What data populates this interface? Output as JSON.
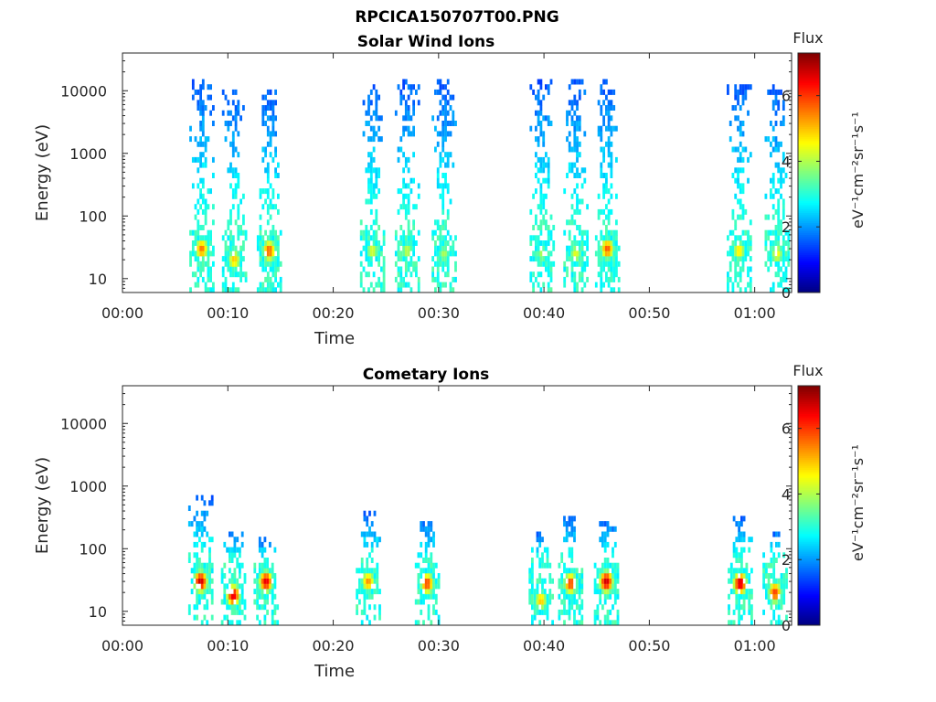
{
  "figure_title": "RPCICA150707T00.PNG",
  "colormap": [
    "#00007f",
    "#0000ff",
    "#007fff",
    "#00ffff",
    "#7fff7f",
    "#ffff00",
    "#ff7f00",
    "#ff0000",
    "#7f0000"
  ],
  "chart_data": [
    {
      "type": "heatmap",
      "title": "Solar Wind Ions",
      "xlabel": "Time",
      "ylabel": "Energy (eV)",
      "x_scale": "time",
      "x_range_minutes": [
        0,
        63.5
      ],
      "x_ticks": [
        "00:00",
        "00:10",
        "00:20",
        "00:30",
        "00:40",
        "00:50",
        "01:00"
      ],
      "y_scale": "log",
      "ylim": [
        6,
        40000
      ],
      "y_ticks": [
        "10",
        "100",
        "1000",
        "10000"
      ],
      "colorbar": {
        "label": "Flux",
        "units": "eV⁻¹cm⁻²sr⁻¹s⁻¹",
        "range": [
          0,
          7.3
        ],
        "ticks": [
          "0",
          "2",
          "4",
          "6"
        ]
      },
      "ion_bursts": [
        {
          "t": 7.4,
          "low_peak_eV": 30,
          "low_level": 5.6,
          "high_extent_eV": 15000
        },
        {
          "t": 10.5,
          "low_peak_eV": 20,
          "low_level": 5.0,
          "high_extent_eV": 11000
        },
        {
          "t": 13.8,
          "low_peak_eV": 28,
          "low_level": 5.8,
          "high_extent_eV": 11000
        },
        {
          "t": 23.6,
          "low_peak_eV": 28,
          "low_level": 4.4,
          "high_extent_eV": 14000
        },
        {
          "t": 26.9,
          "low_peak_eV": 28,
          "low_level": 4.2,
          "high_extent_eV": 14000
        },
        {
          "t": 30.4,
          "low_peak_eV": 25,
          "low_level": 4.0,
          "high_extent_eV": 14000
        },
        {
          "t": 39.7,
          "low_peak_eV": 25,
          "low_level": 4.0,
          "high_extent_eV": 14000
        },
        {
          "t": 42.9,
          "low_peak_eV": 25,
          "low_level": 4.4,
          "high_extent_eV": 15000
        },
        {
          "t": 45.9,
          "low_peak_eV": 30,
          "low_level": 5.8,
          "high_extent_eV": 15000
        },
        {
          "t": 58.4,
          "low_peak_eV": 28,
          "low_level": 4.8,
          "high_extent_eV": 12000
        },
        {
          "t": 62.0,
          "low_peak_eV": 25,
          "low_level": 4.6,
          "high_extent_eV": 12000
        }
      ]
    },
    {
      "type": "heatmap",
      "title": "Cometary Ions",
      "xlabel": "Time",
      "ylabel": "Energy (eV)",
      "x_scale": "time",
      "x_range_minutes": [
        0,
        63.5
      ],
      "x_ticks": [
        "00:00",
        "00:10",
        "00:20",
        "00:30",
        "00:40",
        "00:50",
        "01:00"
      ],
      "y_scale": "log",
      "ylim": [
        6,
        40000
      ],
      "y_ticks": [
        "10",
        "100",
        "1000",
        "10000"
      ],
      "colorbar": {
        "label": "Flux",
        "units": "eV⁻¹cm⁻²sr⁻¹s⁻¹",
        "range": [
          0,
          7.3
        ],
        "ticks": [
          "0",
          "2",
          "4",
          "6"
        ]
      },
      "ion_bursts": [
        {
          "t": 7.3,
          "low_peak_eV": 30,
          "low_level": 6.8,
          "high_extent_eV": 700
        },
        {
          "t": 10.4,
          "low_peak_eV": 18,
          "low_level": 6.6,
          "high_extent_eV": 200
        },
        {
          "t": 13.5,
          "low_peak_eV": 30,
          "low_level": 6.6,
          "high_extent_eV": 150
        },
        {
          "t": 23.2,
          "low_peak_eV": 30,
          "low_level": 5.4,
          "high_extent_eV": 400
        },
        {
          "t": 28.8,
          "low_peak_eV": 28,
          "low_level": 6.0,
          "high_extent_eV": 300
        },
        {
          "t": 39.6,
          "low_peak_eV": 15,
          "low_level": 5.0,
          "high_extent_eV": 200
        },
        {
          "t": 42.4,
          "low_peak_eV": 28,
          "low_level": 6.0,
          "high_extent_eV": 350
        },
        {
          "t": 45.8,
          "low_peak_eV": 30,
          "low_level": 6.8,
          "high_extent_eV": 300
        },
        {
          "t": 58.5,
          "low_peak_eV": 28,
          "low_level": 6.8,
          "high_extent_eV": 350
        },
        {
          "t": 61.8,
          "low_peak_eV": 20,
          "low_level": 6.0,
          "high_extent_eV": 200
        }
      ]
    }
  ]
}
